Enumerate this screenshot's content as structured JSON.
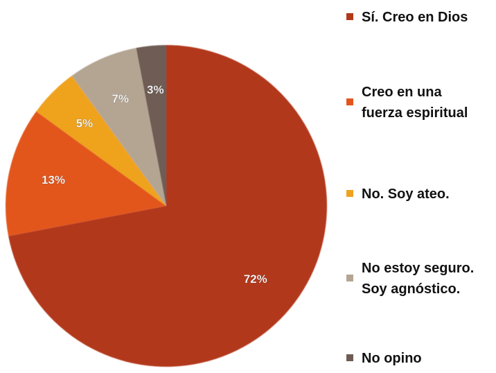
{
  "chart_data": {
    "type": "pie",
    "categories": [
      "Sí. Creo en Dios",
      "Creo en una\nfuerza espiritual",
      "No. Soy ateo.",
      "No estoy seguro.\nSoy agnóstico.",
      "No opino"
    ],
    "values": [
      72,
      13,
      5,
      7,
      3
    ],
    "data_labels": [
      "72%",
      "13%",
      "5%",
      "7%",
      "3%"
    ],
    "colors": [
      "#b2381a",
      "#e2561d",
      "#efa21e",
      "#b4a593",
      "#6e5c54"
    ],
    "legend_position": "right"
  }
}
